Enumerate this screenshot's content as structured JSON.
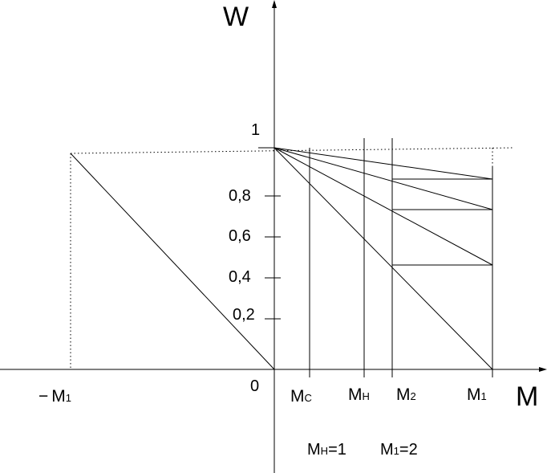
{
  "axes": {
    "y_label": "W",
    "x_label": "M",
    "origin_label": "0"
  },
  "y_ticks": [
    {
      "label": "1",
      "value": 1.0
    },
    {
      "label": "0,8",
      "value": 0.8
    },
    {
      "label": "0,6",
      "value": 0.6
    },
    {
      "label": "0,4",
      "value": 0.4
    },
    {
      "label": "0,2",
      "value": 0.2
    }
  ],
  "x_markers": [
    {
      "main": "M",
      "sub": "C",
      "value": 0.18
    },
    {
      "main": "M",
      "sub": "H",
      "value": 0.45
    },
    {
      "main": "M",
      "sub": "2",
      "value": 0.59
    },
    {
      "main": "M",
      "sub": "1",
      "value": 1.08
    }
  ],
  "neg_marker": {
    "prefix": "−",
    "main": "M",
    "sub": "1"
  },
  "annotations": {
    "left": {
      "main": "M",
      "sub": "H",
      "rest": "=1"
    },
    "right": {
      "main": "M",
      "sub": "1",
      "rest": "=2"
    }
  },
  "chart_data": {
    "type": "line",
    "xlabel": "M",
    "ylabel": "W",
    "series": [
      {
        "points": [
          [
            0,
            1.0
          ],
          [
            1.08,
            0.0
          ]
        ]
      },
      {
        "points": [
          [
            0,
            1.0
          ],
          [
            1.08,
            0.48
          ]
        ]
      },
      {
        "points": [
          [
            0,
            1.0
          ],
          [
            1.08,
            0.73
          ]
        ]
      },
      {
        "points": [
          [
            0,
            1.0
          ],
          [
            1.08,
            0.87
          ]
        ]
      },
      {
        "points": [
          [
            0,
            0.0
          ],
          [
            -1.0,
            0.97
          ]
        ]
      }
    ],
    "horizontal_segments": [
      {
        "x": [
          0.59,
          1.08
        ],
        "y": 0.48
      },
      {
        "x": [
          0.59,
          1.08
        ],
        "y": 0.73
      },
      {
        "x": [
          0.59,
          1.08
        ],
        "y": 0.87
      }
    ]
  }
}
